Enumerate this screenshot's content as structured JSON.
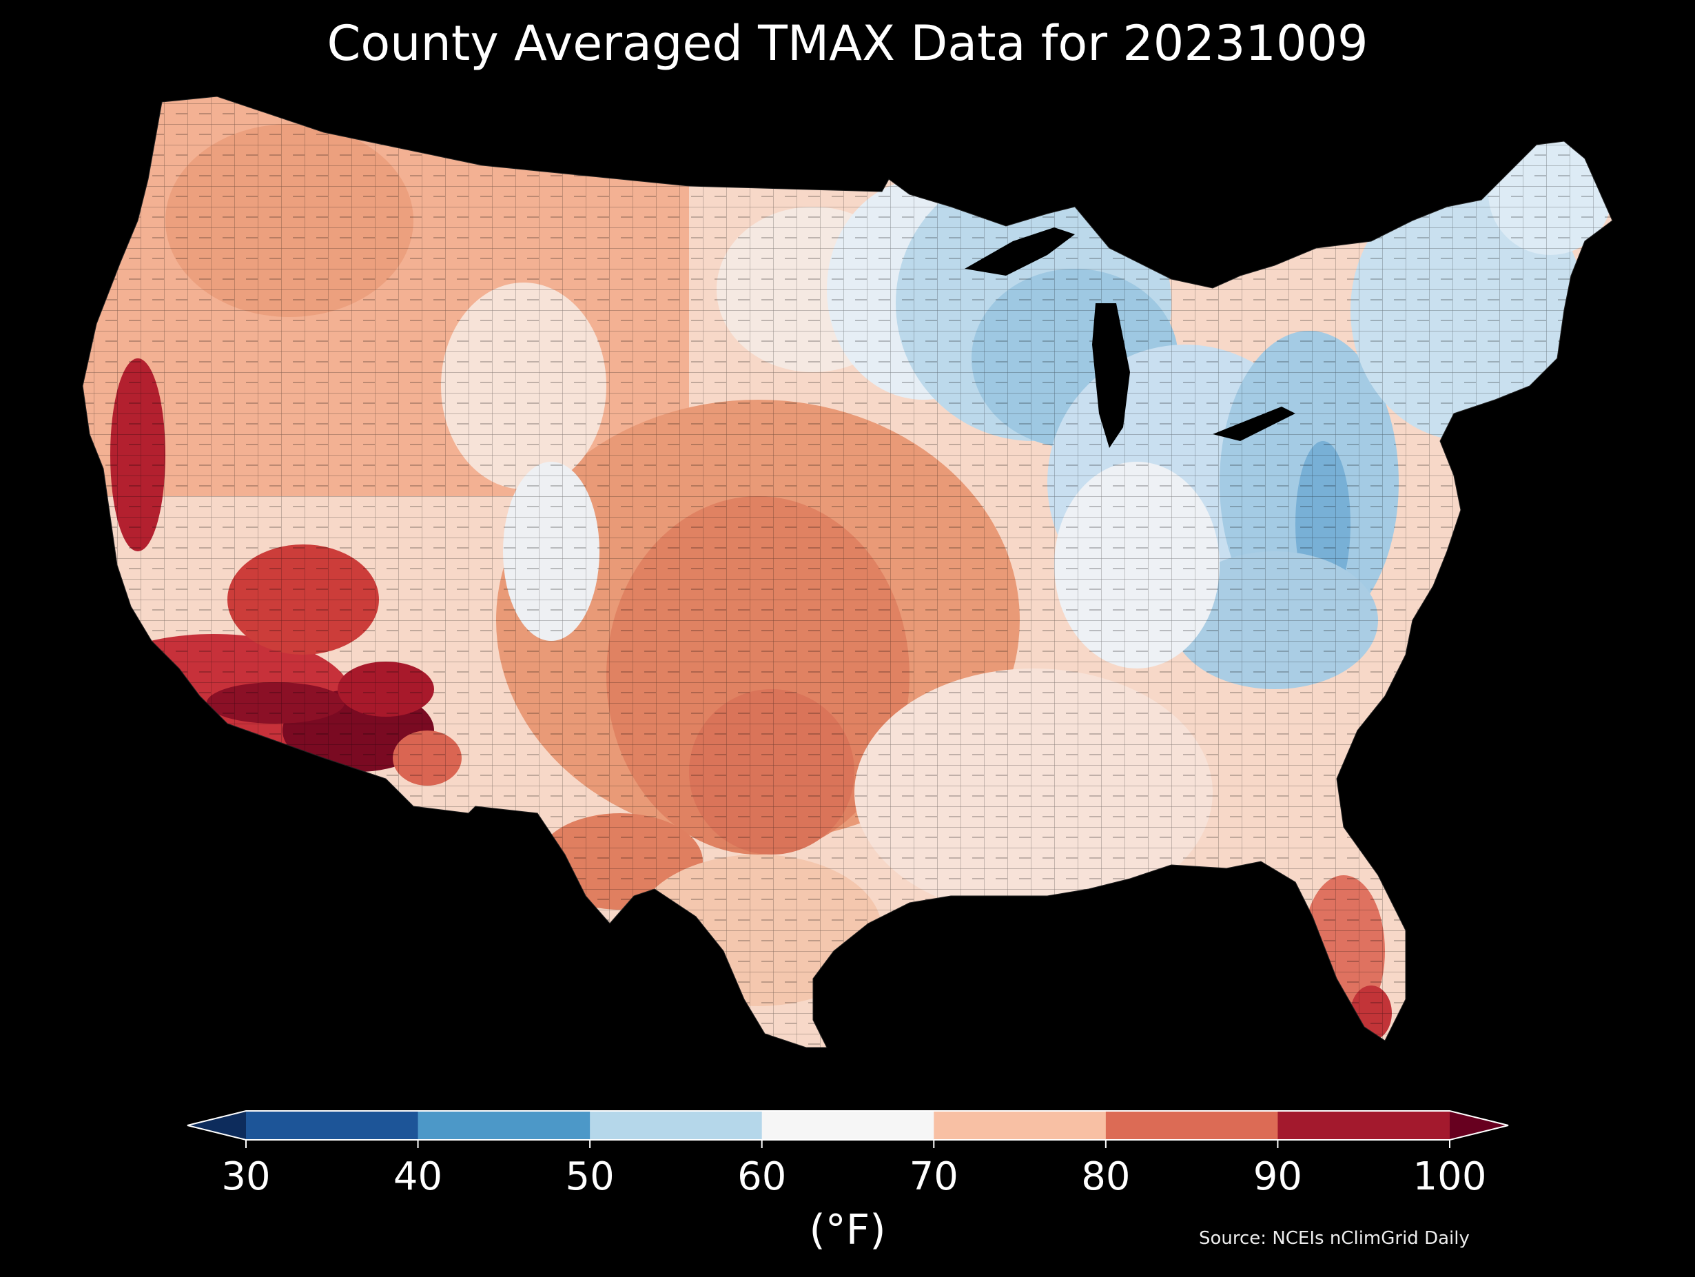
{
  "title": "County Averaged TMAX Data for 20231009",
  "colorbar": {
    "ticks": [
      "30",
      "40",
      "50",
      "60",
      "70",
      "80",
      "90",
      "100"
    ],
    "unit": "(°F)",
    "bins": [
      {
        "from": 30,
        "to": 40,
        "color": "#1d5598"
      },
      {
        "from": 40,
        "to": 50,
        "color": "#4c98c8"
      },
      {
        "from": 50,
        "to": 60,
        "color": "#b5d7ea"
      },
      {
        "from": 60,
        "to": 70,
        "color": "#f6f6f6"
      },
      {
        "from": 70,
        "to": 80,
        "color": "#f8c0a4"
      },
      {
        "from": 80,
        "to": 90,
        "color": "#dc6b55"
      },
      {
        "from": 90,
        "to": 100,
        "color": "#a3192d"
      }
    ],
    "under_color": "#0d2c5c",
    "over_color": "#67001f"
  },
  "source": "Source: NCEIs nClimGrid Daily",
  "map": {
    "region": "Contiguous United States (counties)",
    "background": "#000000",
    "ocean_color": "#000000"
  }
}
